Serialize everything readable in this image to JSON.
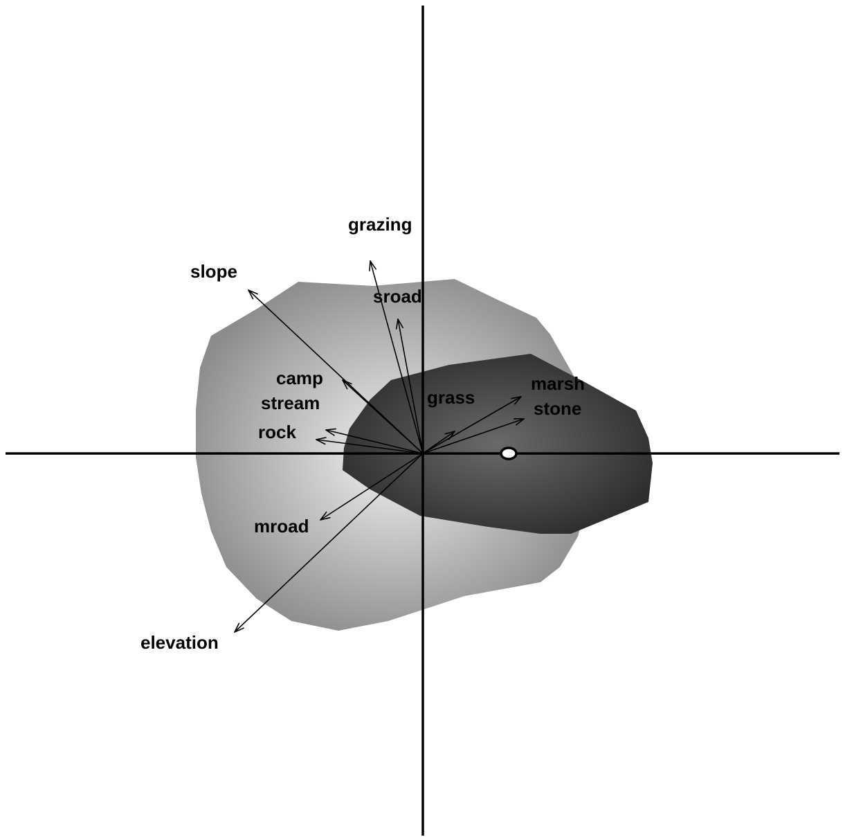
{
  "chart_data": {
    "type": "scatter",
    "title": "",
    "xlabel": "",
    "ylabel": "",
    "grid": false,
    "colors": {
      "outer_hull_edge": "#8c8c8c",
      "outer_hull_center": "#f2f2f2",
      "inner_hull_edge": "#2e2e2e",
      "inner_hull_center": "#6a6a6a",
      "axes": "#000000"
    },
    "vectors": [
      {
        "name": "grazing",
        "x": -0.38,
        "y": 1.39
      },
      {
        "name": "slope",
        "x": -1.26,
        "y": 1.18
      },
      {
        "name": "sroad",
        "x": -0.18,
        "y": 0.97
      },
      {
        "name": "camp",
        "x": -0.58,
        "y": 0.53
      },
      {
        "name": "stream",
        "x": -0.7,
        "y": 0.17
      },
      {
        "name": "rock",
        "x": -0.77,
        "y": 0.1
      },
      {
        "name": "grass",
        "x": 0.23,
        "y": 0.16
      },
      {
        "name": "marsh",
        "x": 0.71,
        "y": 0.41
      },
      {
        "name": "stone",
        "x": 0.73,
        "y": 0.25
      },
      {
        "name": "mroad",
        "x": -0.74,
        "y": -0.48
      },
      {
        "name": "elevation",
        "x": -1.36,
        "y": -1.29
      }
    ],
    "centroid": {
      "x": 0.62,
      "y": 0.0
    },
    "outer_hull": [
      [
        0.23,
        1.26
      ],
      [
        0.54,
        1.11
      ],
      [
        0.82,
        0.98
      ],
      [
        0.92,
        0.86
      ],
      [
        1.08,
        0.58
      ],
      [
        1.23,
        0.25
      ],
      [
        1.23,
        -0.19
      ],
      [
        1.12,
        -0.6
      ],
      [
        0.99,
        -0.82
      ],
      [
        0.85,
        -0.93
      ],
      [
        0.3,
        -1.03
      ],
      [
        -0.25,
        -1.21
      ],
      [
        -0.61,
        -1.28
      ],
      [
        -0.95,
        -1.21
      ],
      [
        -1.2,
        -1.05
      ],
      [
        -1.42,
        -0.82
      ],
      [
        -1.53,
        -0.56
      ],
      [
        -1.6,
        -0.29
      ],
      [
        -1.64,
        -0.03
      ],
      [
        -1.64,
        0.32
      ],
      [
        -1.61,
        0.62
      ],
      [
        -1.53,
        0.85
      ],
      [
        -1.19,
        1.05
      ],
      [
        -0.9,
        1.24
      ],
      [
        -0.36,
        1.21
      ]
    ],
    "inner_hull": [
      [
        -0.23,
        0.53
      ],
      [
        0.19,
        0.64
      ],
      [
        0.78,
        0.72
      ],
      [
        1.18,
        0.51
      ],
      [
        1.54,
        0.31
      ],
      [
        1.63,
        0.11
      ],
      [
        1.66,
        -0.07
      ],
      [
        1.63,
        -0.35
      ],
      [
        1.07,
        -0.58
      ],
      [
        0.85,
        -0.58
      ],
      [
        0.47,
        -0.53
      ],
      [
        -0.02,
        -0.45
      ],
      [
        -0.38,
        -0.26
      ],
      [
        -0.58,
        -0.12
      ],
      [
        -0.57,
        0.04
      ],
      [
        -0.53,
        0.18
      ],
      [
        -0.38,
        0.39
      ],
      [
        -0.23,
        0.53
      ]
    ]
  }
}
